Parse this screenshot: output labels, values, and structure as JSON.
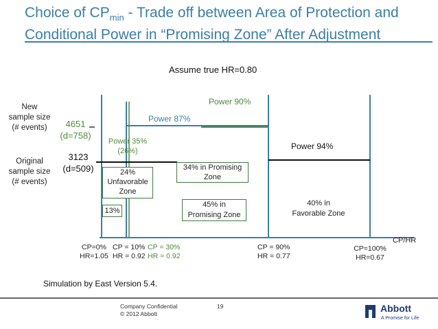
{
  "slide": {
    "title_line1_pre": "Choice of CP",
    "title_line1_sub": "min",
    "title_line1_post": " - Trade off between Area of Protection and",
    "title_line2": "Conditional Power in “Promising Zone” After Adjustment",
    "assumption": "Assume true HR=0.80",
    "simulation_note": "Simulation by East Version 5.4."
  },
  "y_labels": {
    "new_line1": "New",
    "new_line2": "sample size",
    "new_line3": "(# events)",
    "new_value": "4651",
    "new_d": "(d=758)",
    "orig_line1": "Original",
    "orig_line2": "sample size",
    "orig_line3": "(# events)",
    "orig_value": "3123",
    "orig_d": "(d=509)"
  },
  "power_labels": {
    "p90": "Power 90%",
    "p87": "Power 87%",
    "p35_line1": "Power 35%",
    "p35_line2": "(26%)",
    "p94": "Power 94%"
  },
  "zones": {
    "unfavorable_line1": "24%",
    "unfavorable_line2": "Unfavorable",
    "unfavorable_line3": "Zone",
    "small": "13%",
    "promising34_line1": "34% in Promising",
    "promising34_line2": "Zone",
    "promising45_line1": "45% in",
    "promising45_line2": "Promising Zone",
    "favorable_line1": "40% in",
    "favorable_line2": "Favorable Zone"
  },
  "x_axis": {
    "label": "CP/HR",
    "cp0_line1": "CP=0%",
    "cp0_line2": "HR=1.05",
    "cp10_line1": "CP = 10%",
    "cp10_line2": "HR = 0.92",
    "cp30_line1": "CP = 30%",
    "cp30_line2": "HR = 0.92",
    "cp90_line1": "CP = 90%",
    "cp90_line2": "HR = 0.77",
    "cp100_line1": "CP=100%",
    "cp100_line2": "HR=0.67"
  },
  "footer": {
    "confidential": "Company Confidential",
    "copyright": "© 2012 Abbott",
    "page": "19",
    "logo_word": "Abbott",
    "tagline": "A Promise for Life"
  },
  "colors": {
    "title": "#3a7ea8",
    "blue_line": "#3a7ea8",
    "green": "#4e8a3a",
    "box_border": "#3f7a3f"
  }
}
